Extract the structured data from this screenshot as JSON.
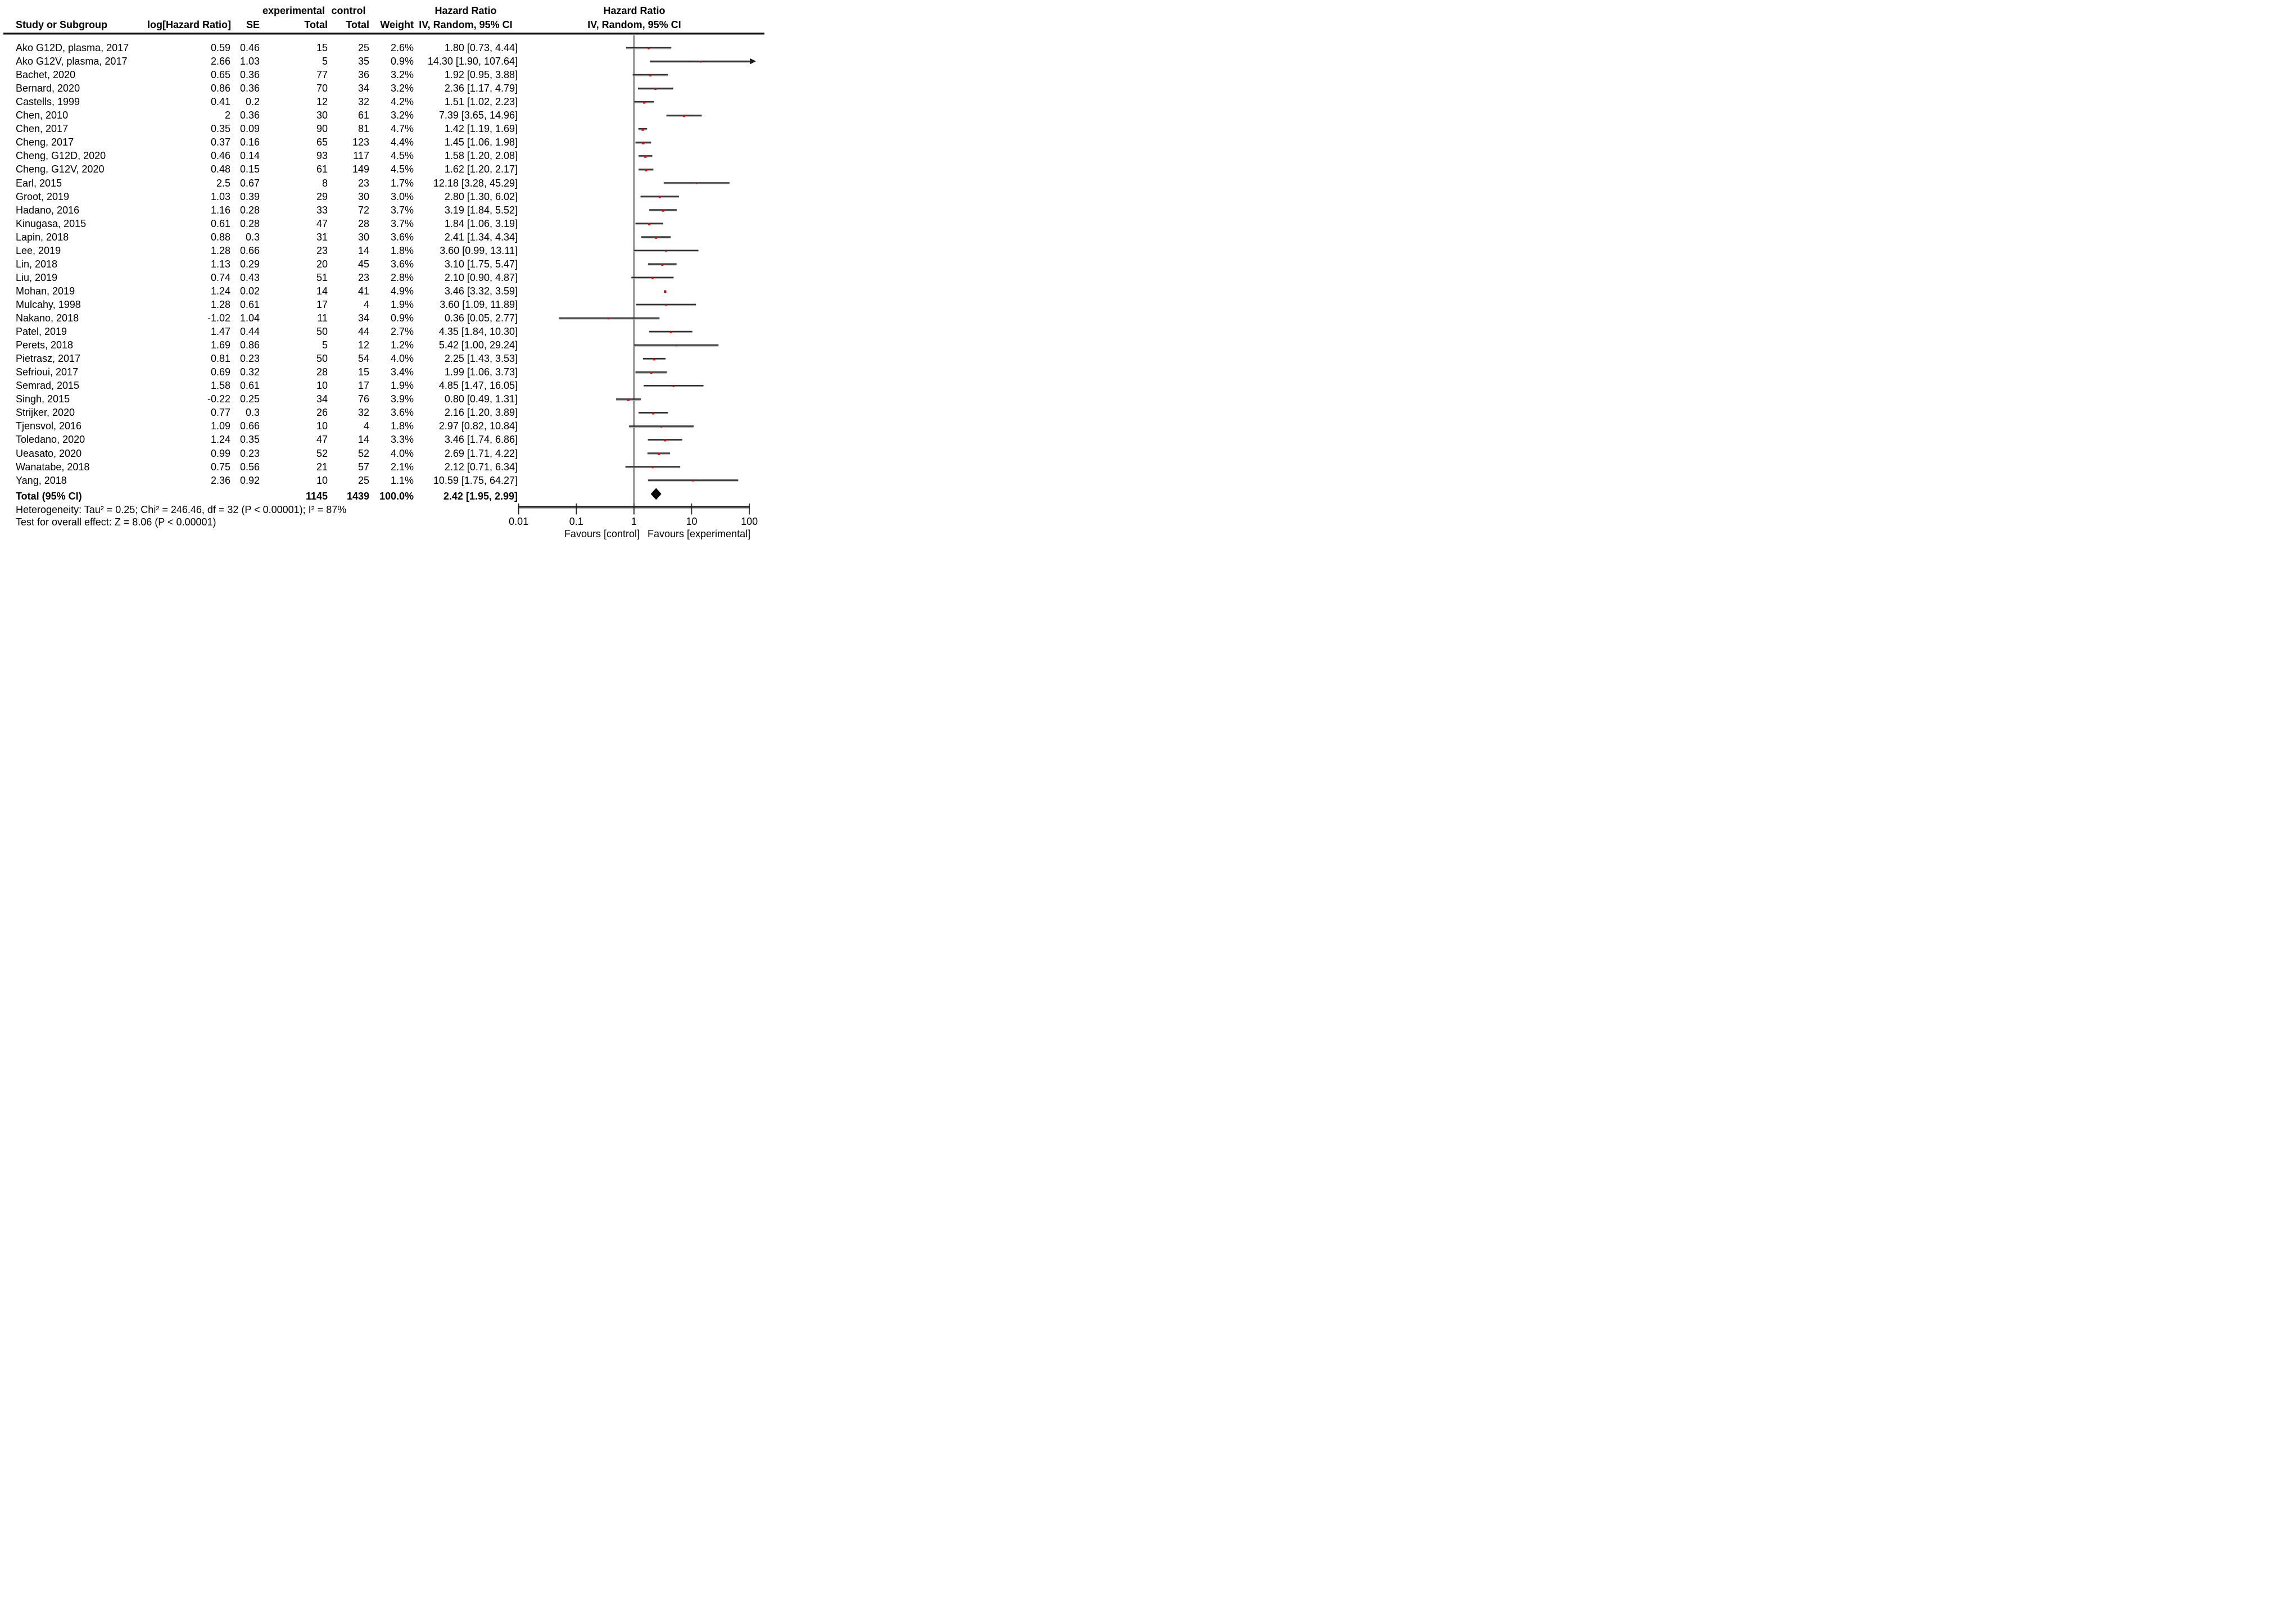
{
  "header": {
    "group_experimental": "experimental",
    "group_control": "control",
    "hazard_ratio_col_line1": "Hazard Ratio",
    "hazard_ratio_col_line2": "IV, Random, 95% CI",
    "hazard_ratio_plot_line1": "Hazard Ratio",
    "hazard_ratio_plot_line2": "IV, Random, 95% CI",
    "study": "Study or Subgroup",
    "log_hr": "log[Hazard Ratio]",
    "se": "SE",
    "total_exp": "Total",
    "total_ctrl": "Total",
    "weight": "Weight"
  },
  "totals": {
    "label": "Total (95% CI)",
    "exp_total": "1145",
    "ctrl_total": "1439",
    "weight": "100.0%",
    "ci_label": "2.42 [1.95, 2.99]"
  },
  "footer": {
    "heterogeneity": "Heterogeneity: Tau² = 0.25; Chi² = 246.46, df = 32 (P < 0.00001); I² = 87%",
    "overall_effect": "Test for overall effect: Z = 8.06 (P < 0.00001)",
    "favours_left": "Favours [control]",
    "favours_right": "Favours [experimental]"
  },
  "chart_data": {
    "type": "forest",
    "x_scale": "log10",
    "xlim": [
      0.01,
      100
    ],
    "axis_tick_values": [
      0.01,
      0.1,
      1,
      10,
      100
    ],
    "axis_tick_labels": [
      "0.01",
      "0.1",
      "1",
      "10",
      "100"
    ],
    "effect_measure": "Hazard Ratio",
    "model": "IV, Random, 95% CI",
    "marker_color": "#cc1111",
    "line_color": "#333333",
    "diamond_color": "#0a0a0a",
    "total": {
      "hr": 2.42,
      "lo": 1.95,
      "hi": 2.99,
      "weight_pct": 100.0
    },
    "studies": [
      {
        "name": "Ako G12D, plasma, 2017",
        "log_hr": "0.59",
        "se": "0.46",
        "exp_total": "15",
        "ctrl_total": "25",
        "weight": "2.6%",
        "weight_pct": 2.6,
        "ci_label": "1.80 [0.73, 4.44]",
        "hr": 1.8,
        "lo": 0.73,
        "hi": 4.44
      },
      {
        "name": "Ako G12V, plasma, 2017",
        "log_hr": "2.66",
        "se": "1.03",
        "exp_total": "5",
        "ctrl_total": "35",
        "weight": "0.9%",
        "weight_pct": 0.9,
        "ci_label": "14.30 [1.90, 107.64]",
        "hr": 14.3,
        "lo": 1.9,
        "hi": 107.64
      },
      {
        "name": "Bachet, 2020",
        "log_hr": "0.65",
        "se": "0.36",
        "exp_total": "77",
        "ctrl_total": "36",
        "weight": "3.2%",
        "weight_pct": 3.2,
        "ci_label": "1.92 [0.95, 3.88]",
        "hr": 1.92,
        "lo": 0.95,
        "hi": 3.88
      },
      {
        "name": "Bernard, 2020",
        "log_hr": "0.86",
        "se": "0.36",
        "exp_total": "70",
        "ctrl_total": "34",
        "weight": "3.2%",
        "weight_pct": 3.2,
        "ci_label": "2.36 [1.17, 4.79]",
        "hr": 2.36,
        "lo": 1.17,
        "hi": 4.79
      },
      {
        "name": "Castells, 1999",
        "log_hr": "0.41",
        "se": "0.2",
        "exp_total": "12",
        "ctrl_total": "32",
        "weight": "4.2%",
        "weight_pct": 4.2,
        "ci_label": "1.51 [1.02, 2.23]",
        "hr": 1.51,
        "lo": 1.02,
        "hi": 2.23
      },
      {
        "name": "Chen, 2010",
        "log_hr": "2",
        "se": "0.36",
        "exp_total": "30",
        "ctrl_total": "61",
        "weight": "3.2%",
        "weight_pct": 3.2,
        "ci_label": "7.39 [3.65, 14.96]",
        "hr": 7.39,
        "lo": 3.65,
        "hi": 14.96
      },
      {
        "name": "Chen, 2017",
        "log_hr": "0.35",
        "se": "0.09",
        "exp_total": "90",
        "ctrl_total": "81",
        "weight": "4.7%",
        "weight_pct": 4.7,
        "ci_label": "1.42 [1.19, 1.69]",
        "hr": 1.42,
        "lo": 1.19,
        "hi": 1.69
      },
      {
        "name": "Cheng, 2017",
        "log_hr": "0.37",
        "se": "0.16",
        "exp_total": "65",
        "ctrl_total": "123",
        "weight": "4.4%",
        "weight_pct": 4.4,
        "ci_label": "1.45 [1.06, 1.98]",
        "hr": 1.45,
        "lo": 1.06,
        "hi": 1.98
      },
      {
        "name": "Cheng, G12D, 2020",
        "log_hr": "0.46",
        "se": "0.14",
        "exp_total": "93",
        "ctrl_total": "117",
        "weight": "4.5%",
        "weight_pct": 4.5,
        "ci_label": "1.58 [1.20, 2.08]",
        "hr": 1.58,
        "lo": 1.2,
        "hi": 2.08
      },
      {
        "name": "Cheng, G12V, 2020",
        "log_hr": "0.48",
        "se": "0.15",
        "exp_total": "61",
        "ctrl_total": "149",
        "weight": "4.5%",
        "weight_pct": 4.5,
        "ci_label": "1.62 [1.20, 2.17]",
        "hr": 1.62,
        "lo": 1.2,
        "hi": 2.17
      },
      {
        "name": "Earl, 2015",
        "log_hr": "2.5",
        "se": "0.67",
        "exp_total": "8",
        "ctrl_total": "23",
        "weight": "1.7%",
        "weight_pct": 1.7,
        "ci_label": "12.18 [3.28, 45.29]",
        "hr": 12.18,
        "lo": 3.28,
        "hi": 45.29
      },
      {
        "name": "Groot, 2019",
        "log_hr": "1.03",
        "se": "0.39",
        "exp_total": "29",
        "ctrl_total": "30",
        "weight": "3.0%",
        "weight_pct": 3.0,
        "ci_label": "2.80 [1.30, 6.02]",
        "hr": 2.8,
        "lo": 1.3,
        "hi": 6.02
      },
      {
        "name": "Hadano, 2016",
        "log_hr": "1.16",
        "se": "0.28",
        "exp_total": "33",
        "ctrl_total": "72",
        "weight": "3.7%",
        "weight_pct": 3.7,
        "ci_label": "3.19 [1.84, 5.52]",
        "hr": 3.19,
        "lo": 1.84,
        "hi": 5.52
      },
      {
        "name": "Kinugasa, 2015",
        "log_hr": "0.61",
        "se": "0.28",
        "exp_total": "47",
        "ctrl_total": "28",
        "weight": "3.7%",
        "weight_pct": 3.7,
        "ci_label": "1.84 [1.06, 3.19]",
        "hr": 1.84,
        "lo": 1.06,
        "hi": 3.19
      },
      {
        "name": "Lapin, 2018",
        "log_hr": "0.88",
        "se": "0.3",
        "exp_total": "31",
        "ctrl_total": "30",
        "weight": "3.6%",
        "weight_pct": 3.6,
        "ci_label": "2.41 [1.34, 4.34]",
        "hr": 2.41,
        "lo": 1.34,
        "hi": 4.34
      },
      {
        "name": "Lee, 2019",
        "log_hr": "1.28",
        "se": "0.66",
        "exp_total": "23",
        "ctrl_total": "14",
        "weight": "1.8%",
        "weight_pct": 1.8,
        "ci_label": "3.60 [0.99, 13.11]",
        "hr": 3.6,
        "lo": 0.99,
        "hi": 13.11
      },
      {
        "name": "Lin, 2018",
        "log_hr": "1.13",
        "se": "0.29",
        "exp_total": "20",
        "ctrl_total": "45",
        "weight": "3.6%",
        "weight_pct": 3.6,
        "ci_label": "3.10 [1.75, 5.47]",
        "hr": 3.1,
        "lo": 1.75,
        "hi": 5.47
      },
      {
        "name": "Liu, 2019",
        "log_hr": "0.74",
        "se": "0.43",
        "exp_total": "51",
        "ctrl_total": "23",
        "weight": "2.8%",
        "weight_pct": 2.8,
        "ci_label": "2.10 [0.90, 4.87]",
        "hr": 2.1,
        "lo": 0.9,
        "hi": 4.87
      },
      {
        "name": "Mohan, 2019",
        "log_hr": "1.24",
        "se": "0.02",
        "exp_total": "14",
        "ctrl_total": "41",
        "weight": "4.9%",
        "weight_pct": 4.9,
        "ci_label": "3.46 [3.32, 3.59]",
        "hr": 3.46,
        "lo": 3.32,
        "hi": 3.59
      },
      {
        "name": "Mulcahy, 1998",
        "log_hr": "1.28",
        "se": "0.61",
        "exp_total": "17",
        "ctrl_total": "4",
        "weight": "1.9%",
        "weight_pct": 1.9,
        "ci_label": "3.60 [1.09, 11.89]",
        "hr": 3.6,
        "lo": 1.09,
        "hi": 11.89
      },
      {
        "name": "Nakano, 2018",
        "log_hr": "-1.02",
        "se": "1.04",
        "exp_total": "11",
        "ctrl_total": "34",
        "weight": "0.9%",
        "weight_pct": 0.9,
        "ci_label": "0.36 [0.05, 2.77]",
        "hr": 0.36,
        "lo": 0.05,
        "hi": 2.77
      },
      {
        "name": "Patel, 2019",
        "log_hr": "1.47",
        "se": "0.44",
        "exp_total": "50",
        "ctrl_total": "44",
        "weight": "2.7%",
        "weight_pct": 2.7,
        "ci_label": "4.35 [1.84, 10.30]",
        "hr": 4.35,
        "lo": 1.84,
        "hi": 10.3
      },
      {
        "name": "Perets, 2018",
        "log_hr": "1.69",
        "se": "0.86",
        "exp_total": "5",
        "ctrl_total": "12",
        "weight": "1.2%",
        "weight_pct": 1.2,
        "ci_label": "5.42 [1.00, 29.24]",
        "hr": 5.42,
        "lo": 1.0,
        "hi": 29.24
      },
      {
        "name": "Pietrasz, 2017",
        "log_hr": "0.81",
        "se": "0.23",
        "exp_total": "50",
        "ctrl_total": "54",
        "weight": "4.0%",
        "weight_pct": 4.0,
        "ci_label": "2.25 [1.43, 3.53]",
        "hr": 2.25,
        "lo": 1.43,
        "hi": 3.53
      },
      {
        "name": "Sefrioui, 2017",
        "log_hr": "0.69",
        "se": "0.32",
        "exp_total": "28",
        "ctrl_total": "15",
        "weight": "3.4%",
        "weight_pct": 3.4,
        "ci_label": "1.99 [1.06, 3.73]",
        "hr": 1.99,
        "lo": 1.06,
        "hi": 3.73
      },
      {
        "name": "Semrad, 2015",
        "log_hr": "1.58",
        "se": "0.61",
        "exp_total": "10",
        "ctrl_total": "17",
        "weight": "1.9%",
        "weight_pct": 1.9,
        "ci_label": "4.85 [1.47, 16.05]",
        "hr": 4.85,
        "lo": 1.47,
        "hi": 16.05
      },
      {
        "name": "Singh, 2015",
        "log_hr": "-0.22",
        "se": "0.25",
        "exp_total": "34",
        "ctrl_total": "76",
        "weight": "3.9%",
        "weight_pct": 3.9,
        "ci_label": "0.80 [0.49, 1.31]",
        "hr": 0.8,
        "lo": 0.49,
        "hi": 1.31
      },
      {
        "name": "Strijker, 2020",
        "log_hr": "0.77",
        "se": "0.3",
        "exp_total": "26",
        "ctrl_total": "32",
        "weight": "3.6%",
        "weight_pct": 3.6,
        "ci_label": "2.16 [1.20, 3.89]",
        "hr": 2.16,
        "lo": 1.2,
        "hi": 3.89
      },
      {
        "name": "Tjensvol, 2016",
        "log_hr": "1.09",
        "se": "0.66",
        "exp_total": "10",
        "ctrl_total": "4",
        "weight": "1.8%",
        "weight_pct": 1.8,
        "ci_label": "2.97 [0.82, 10.84]",
        "hr": 2.97,
        "lo": 0.82,
        "hi": 10.84
      },
      {
        "name": "Toledano, 2020",
        "log_hr": "1.24",
        "se": "0.35",
        "exp_total": "47",
        "ctrl_total": "14",
        "weight": "3.3%",
        "weight_pct": 3.3,
        "ci_label": "3.46 [1.74, 6.86]",
        "hr": 3.46,
        "lo": 1.74,
        "hi": 6.86
      },
      {
        "name": "Ueasato, 2020",
        "log_hr": "0.99",
        "se": "0.23",
        "exp_total": "52",
        "ctrl_total": "52",
        "weight": "4.0%",
        "weight_pct": 4.0,
        "ci_label": "2.69 [1.71, 4.22]",
        "hr": 2.69,
        "lo": 1.71,
        "hi": 4.22
      },
      {
        "name": "Wanatabe, 2018",
        "log_hr": "0.75",
        "se": "0.56",
        "exp_total": "21",
        "ctrl_total": "57",
        "weight": "2.1%",
        "weight_pct": 2.1,
        "ci_label": "2.12 [0.71, 6.34]",
        "hr": 2.12,
        "lo": 0.71,
        "hi": 6.34
      },
      {
        "name": "Yang, 2018",
        "log_hr": "2.36",
        "se": "0.92",
        "exp_total": "10",
        "ctrl_total": "25",
        "weight": "1.1%",
        "weight_pct": 1.1,
        "ci_label": "10.59 [1.75, 64.27]",
        "hr": 10.59,
        "lo": 1.75,
        "hi": 64.27
      }
    ]
  }
}
